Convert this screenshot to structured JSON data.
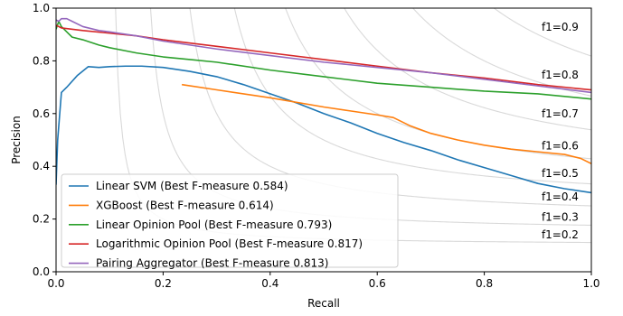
{
  "chart_data": {
    "type": "line",
    "xlabel": "Recall",
    "ylabel": "Precision",
    "xlim": [
      0,
      1
    ],
    "ylim": [
      0,
      1
    ],
    "xticks": [
      0.0,
      0.2,
      0.4,
      0.6,
      0.8,
      1.0
    ],
    "yticks": [
      0.0,
      0.2,
      0.4,
      0.6,
      0.8,
      1.0
    ],
    "xtick_labels": [
      "0.0",
      "0.2",
      "0.4",
      "0.6",
      "0.8",
      "1.0"
    ],
    "ytick_labels": [
      "0.0",
      "0.2",
      "0.4",
      "0.6",
      "0.8",
      "1.0"
    ],
    "grid": false,
    "legend_position": "lower-left",
    "iso_f1": {
      "values": [
        0.2,
        0.3,
        0.4,
        0.5,
        0.6,
        0.7,
        0.8,
        0.9
      ],
      "labels": [
        "f1=0.2",
        "f1=0.3",
        "f1=0.4",
        "f1=0.5",
        "f1=0.6",
        "f1=0.7",
        "f1=0.8",
        "f1=0.9"
      ],
      "color": "#d9d9d9"
    },
    "series": [
      {
        "name": "Linear SVM (Best F-measure 0.584)",
        "color": "#1f77b4",
        "x": [
          0.0,
          0.003,
          0.01,
          0.02,
          0.04,
          0.06,
          0.08,
          0.1,
          0.13,
          0.16,
          0.2,
          0.25,
          0.3,
          0.35,
          0.4,
          0.45,
          0.5,
          0.55,
          0.6,
          0.65,
          0.7,
          0.75,
          0.8,
          0.85,
          0.9,
          0.95,
          1.0
        ],
        "y": [
          0.33,
          0.5,
          0.68,
          0.7,
          0.745,
          0.778,
          0.775,
          0.778,
          0.78,
          0.78,
          0.775,
          0.76,
          0.74,
          0.71,
          0.675,
          0.64,
          0.6,
          0.565,
          0.525,
          0.49,
          0.46,
          0.425,
          0.395,
          0.365,
          0.335,
          0.315,
          0.3
        ]
      },
      {
        "name": "XGBoost (Best F-measure 0.614)",
        "color": "#ff7f0e",
        "x": [
          0.235,
          0.3,
          0.4,
          0.5,
          0.55,
          0.6,
          0.63,
          0.66,
          0.7,
          0.75,
          0.8,
          0.85,
          0.9,
          0.95,
          0.98,
          1.0
        ],
        "y": [
          0.71,
          0.69,
          0.66,
          0.625,
          0.61,
          0.595,
          0.585,
          0.555,
          0.525,
          0.5,
          0.48,
          0.465,
          0.455,
          0.445,
          0.43,
          0.41
        ]
      },
      {
        "name": "Linear Opinion Pool (Best F-measure 0.793)",
        "color": "#2ca02c",
        "x": [
          0.0,
          0.005,
          0.01,
          0.02,
          0.03,
          0.05,
          0.08,
          0.1,
          0.15,
          0.2,
          0.25,
          0.3,
          0.4,
          0.5,
          0.6,
          0.7,
          0.8,
          0.9,
          1.0
        ],
        "y": [
          0.92,
          0.95,
          0.93,
          0.91,
          0.89,
          0.88,
          0.86,
          0.85,
          0.83,
          0.815,
          0.805,
          0.795,
          0.765,
          0.74,
          0.715,
          0.7,
          0.685,
          0.675,
          0.655
        ]
      },
      {
        "name": "Logarithmic Opinion Pool (Best F-measure 0.817)",
        "color": "#d62728",
        "x": [
          0.0,
          0.005,
          0.01,
          0.05,
          0.1,
          0.15,
          0.2,
          0.3,
          0.4,
          0.5,
          0.6,
          0.7,
          0.8,
          0.9,
          1.0
        ],
        "y": [
          0.935,
          0.93,
          0.925,
          0.915,
          0.905,
          0.895,
          0.88,
          0.855,
          0.83,
          0.805,
          0.78,
          0.755,
          0.735,
          0.71,
          0.69
        ]
      },
      {
        "name": "Pairing Aggregator (Best F-measure 0.813)",
        "color": "#9467bd",
        "x": [
          0.0,
          0.005,
          0.01,
          0.02,
          0.03,
          0.05,
          0.08,
          0.1,
          0.15,
          0.2,
          0.3,
          0.4,
          0.5,
          0.6,
          0.7,
          0.8,
          0.9,
          1.0
        ],
        "y": [
          0.955,
          0.95,
          0.96,
          0.96,
          0.95,
          0.93,
          0.915,
          0.91,
          0.895,
          0.875,
          0.845,
          0.82,
          0.795,
          0.775,
          0.755,
          0.73,
          0.705,
          0.68
        ]
      }
    ]
  }
}
